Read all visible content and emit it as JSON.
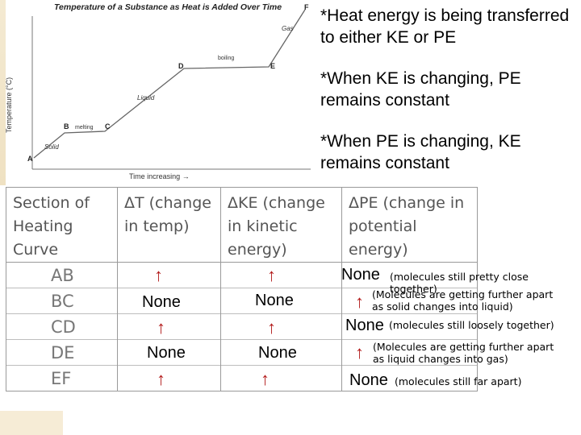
{
  "graph": {
    "title": "Temperature of a Substance as Heat is Added Over Time",
    "xlabel": "Time increasing →",
    "ylabel": "Temperature (°C)",
    "points": {
      "A": "A",
      "B": "B",
      "C": "C",
      "D": "D",
      "E": "E",
      "F": "F"
    },
    "phases": {
      "solid": "Solid",
      "melting": "melting",
      "liquid": "Liquid",
      "boiling": "boiling",
      "gas": "Gas"
    }
  },
  "notes": [
    "*Heat energy is being transferred to either KE or PE",
    "*When KE is changing, PE remains constant",
    "*When PE is changing, KE remains constant"
  ],
  "table": {
    "headers": [
      "Section of Heating Curve",
      "ΔT (change in temp)",
      "ΔKE (change in kinetic energy)",
      "ΔPE (change in potential energy)"
    ],
    "sections": [
      "AB",
      "BC",
      "CD",
      "DE",
      "EF"
    ],
    "dT": [
      "↑",
      "None",
      "↑",
      "None",
      "↑"
    ],
    "dKE": [
      "↑",
      "None",
      "↑",
      "None",
      "↑"
    ],
    "dPE": [
      "None",
      "↑",
      "None",
      "↑",
      "None"
    ],
    "pe_notes": [
      "(molecules still pretty close together)",
      "(Molecules are getting further apart as solid changes into liquid)",
      "(molecules still loosely together)",
      "(Molecules are getting further apart as liquid changes into gas)",
      "(molecules still far apart)"
    ]
  },
  "colors": {
    "arrow": "#b31b1b",
    "line": "#666666"
  }
}
